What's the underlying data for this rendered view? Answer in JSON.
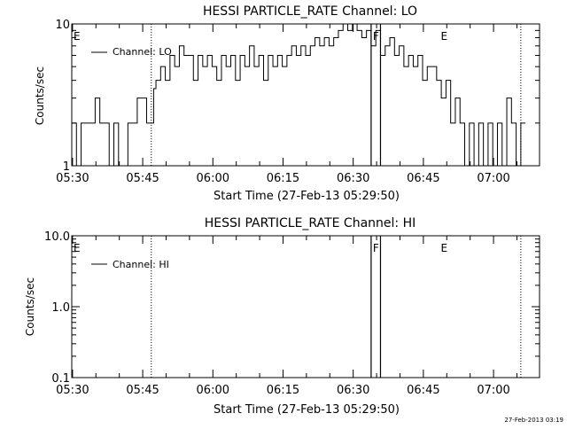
{
  "chart_data": [
    {
      "type": "line",
      "title": "HESSI PARTICLE_RATE Channel: LO",
      "xlabel": "Start Time (27-Feb-13 05:29:50)",
      "ylabel": "Counts/sec",
      "yscale": "log",
      "ylim": [
        1,
        10
      ],
      "xlim_minutes": [
        0,
        100
      ],
      "x_ticks": [
        "05:30",
        "05:45",
        "06:00",
        "06:15",
        "06:30",
        "06:45",
        "07:00"
      ],
      "y_ticks": [
        "1",
        "10"
      ],
      "legend": {
        "placement": "top-left",
        "entries": [
          "Channel: LO"
        ]
      },
      "markers": [
        {
          "label": "E",
          "minute": 0
        },
        {
          "label": "F",
          "minute": 64
        },
        {
          "label": "E",
          "minute": 78.5
        }
      ],
      "dotted_lines_minutes": [
        17,
        96
      ],
      "solid_lines_minutes": [
        64,
        66
      ],
      "series": [
        {
          "name": "Channel: LO",
          "minutes": [
            0,
            1,
            2,
            4,
            5,
            6,
            8,
            9,
            10,
            12,
            13,
            14,
            16,
            17,
            17.5,
            18,
            19,
            20,
            21,
            22,
            23,
            24,
            25,
            26,
            27,
            28,
            29,
            30,
            31,
            32,
            33,
            34,
            35,
            36,
            37,
            38,
            39,
            40,
            41,
            42,
            43,
            44,
            45,
            46,
            47,
            48,
            49,
            50,
            51,
            52,
            53,
            54,
            55,
            56,
            57,
            58,
            59,
            60,
            61,
            62,
            63,
            64,
            65,
            66,
            67,
            68,
            69,
            70,
            71,
            72,
            73,
            74,
            75,
            76,
            77,
            78,
            79,
            80,
            81,
            82,
            83,
            84,
            85,
            86,
            87,
            88,
            89,
            90,
            91,
            92,
            93,
            94,
            95,
            96
          ],
          "values": [
            2,
            1,
            2,
            2,
            3,
            2,
            1,
            2,
            1,
            2,
            2,
            3,
            2,
            2,
            3.5,
            4,
            5,
            4,
            6,
            5,
            7,
            6,
            6,
            4,
            6,
            5,
            6,
            5,
            4,
            6,
            5,
            6,
            4,
            6,
            5,
            7,
            5,
            6,
            4,
            6,
            5,
            6,
            5,
            6,
            7,
            6,
            7,
            6,
            7,
            8,
            7,
            8,
            7,
            8,
            9,
            10,
            9,
            10,
            9,
            8,
            9,
            7,
            9,
            6,
            7,
            8,
            6,
            7,
            5,
            6,
            5,
            6,
            4,
            5,
            5,
            4,
            3,
            4,
            2,
            3,
            2,
            1,
            2,
            1,
            2,
            1,
            2,
            1,
            2,
            1,
            3,
            2,
            1,
            2
          ]
        }
      ]
    },
    {
      "type": "line",
      "title": "HESSI PARTICLE_RATE Channel: HI",
      "xlabel": "Start Time (27-Feb-13 05:29:50)",
      "ylabel": "Counts/sec",
      "yscale": "log",
      "ylim": [
        0.1,
        10
      ],
      "xlim_minutes": [
        0,
        100
      ],
      "x_ticks": [
        "05:30",
        "05:45",
        "06:00",
        "06:15",
        "06:30",
        "06:45",
        "07:00"
      ],
      "y_ticks": [
        "0.1",
        "1.0",
        "10.0"
      ],
      "legend": {
        "placement": "top-left",
        "entries": [
          "Channel: HI"
        ]
      },
      "markers": [
        {
          "label": "E",
          "minute": 0
        },
        {
          "label": "F",
          "minute": 64
        },
        {
          "label": "E",
          "minute": 78.5
        }
      ],
      "dotted_lines_minutes": [
        17,
        96
      ],
      "solid_lines_minutes": [
        64,
        66
      ],
      "series": [
        {
          "name": "Channel: HI",
          "minutes": [],
          "values": []
        }
      ]
    }
  ],
  "footer": {
    "timestamp": "27-Feb-2013 03:19"
  }
}
